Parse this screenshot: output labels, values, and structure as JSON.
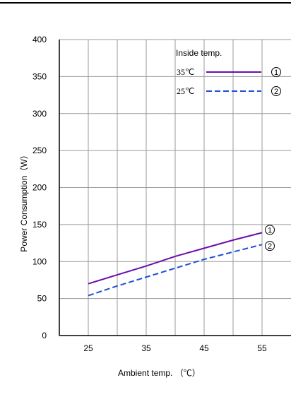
{
  "chart_data": {
    "type": "line",
    "xlabel": "Ambient temp. （℃）",
    "ylabel": "Power Consumption（W）",
    "xlim": [
      20,
      60
    ],
    "ylim": [
      0,
      400
    ],
    "x_ticks": [
      25,
      35,
      45,
      55
    ],
    "y_ticks": [
      0,
      50,
      100,
      150,
      200,
      250,
      300,
      350,
      400
    ],
    "grid": true,
    "legend": {
      "title": "Inside temp.",
      "placement": "top-right"
    },
    "series": [
      {
        "name": "35℃",
        "marker": "1",
        "color": "#6a0dad",
        "style": "solid",
        "x": [
          25,
          30,
          35,
          40,
          45,
          50,
          55
        ],
        "y": [
          70,
          82,
          94,
          107,
          118,
          129,
          139
        ]
      },
      {
        "name": "25℃",
        "marker": "2",
        "color": "#1f4fd8",
        "style": "dashed",
        "x": [
          25,
          30,
          35,
          40,
          45,
          50,
          55
        ],
        "y": [
          54,
          67,
          79,
          91,
          103,
          113,
          123
        ]
      }
    ]
  }
}
